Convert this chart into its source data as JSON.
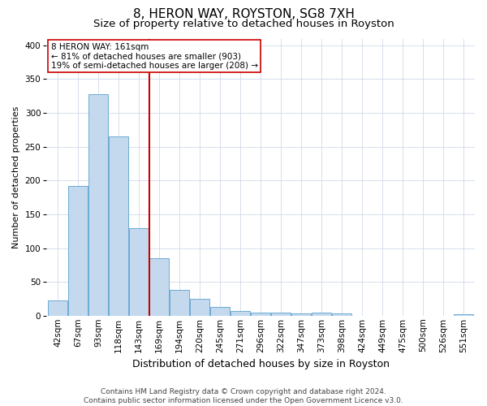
{
  "title": "8, HERON WAY, ROYSTON, SG8 7XH",
  "subtitle": "Size of property relative to detached houses in Royston",
  "xlabel": "Distribution of detached houses by size in Royston",
  "ylabel": "Number of detached properties",
  "categories": [
    "42sqm",
    "67sqm",
    "93sqm",
    "118sqm",
    "143sqm",
    "169sqm",
    "194sqm",
    "220sqm",
    "245sqm",
    "271sqm",
    "296sqm",
    "322sqm",
    "347sqm",
    "373sqm",
    "398sqm",
    "424sqm",
    "449sqm",
    "475sqm",
    "500sqm",
    "526sqm",
    "551sqm"
  ],
  "values": [
    23,
    192,
    328,
    265,
    130,
    85,
    38,
    25,
    13,
    7,
    4,
    4,
    3,
    4,
    3,
    0,
    0,
    0,
    0,
    0,
    2
  ],
  "bar_color": "#c5d9ee",
  "bar_edge_color": "#6aaad4",
  "vline_index": 5,
  "vline_label": "8 HERON WAY: 161sqm",
  "annotation_line1": "← 81% of detached houses are smaller (903)",
  "annotation_line2": "19% of semi-detached houses are larger (208) →",
  "ylim": [
    0,
    410
  ],
  "yticks": [
    0,
    50,
    100,
    150,
    200,
    250,
    300,
    350,
    400
  ],
  "footer_line1": "Contains HM Land Registry data © Crown copyright and database right 2024.",
  "footer_line2": "Contains public sector information licensed under the Open Government Licence v3.0.",
  "title_fontsize": 11,
  "subtitle_fontsize": 9.5,
  "ylabel_fontsize": 8,
  "xlabel_fontsize": 9,
  "tick_fontsize": 7.5,
  "annot_fontsize": 7.5,
  "footer_fontsize": 6.5,
  "grid_color": "#d0d8e8",
  "vline_color": "#cc0000",
  "annot_box_edgecolor": "#cc0000"
}
